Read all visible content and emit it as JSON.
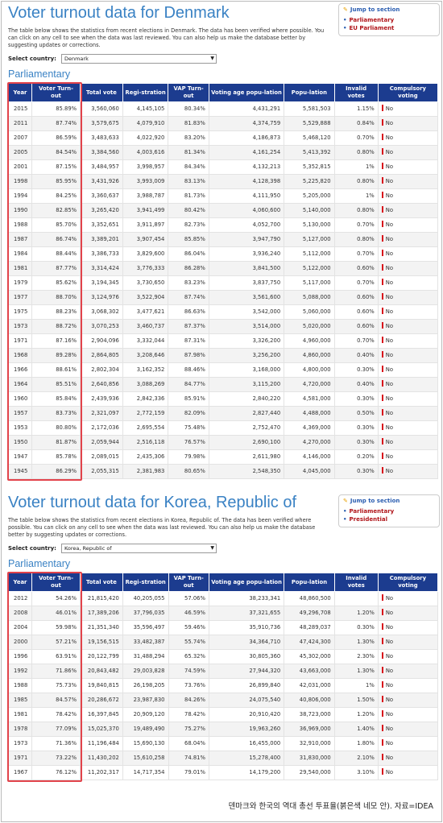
{
  "denmark": {
    "title": "Voter turnout data for Denmark",
    "description": "The table below shows the statistics from recent elections in Denmark. The data has been verified where possible. You can click on any cell to see when the data was last reviewed. You can also help us make the database better by suggesting updates or corrections.",
    "select_label": "Select country:",
    "select_value": "Denmark",
    "subheading": "Parliamentary",
    "jump": {
      "title": "Jump to section",
      "links": [
        "Parliamentary",
        "EU Parliament"
      ]
    },
    "columns": [
      "Year",
      "Voter Turn-out",
      "Total vote",
      "Regi-stration",
      "VAP Turn-out",
      "Voting age popu-lation",
      "Popu-lation",
      "Invalid votes",
      "Compulsory voting"
    ],
    "rows": [
      [
        "2015",
        "85.89%",
        "3,560,060",
        "4,145,105",
        "80.34%",
        "4,431,291",
        "5,581,503",
        "1.15%",
        "No"
      ],
      [
        "2011",
        "87.74%",
        "3,579,675",
        "4,079,910",
        "81.83%",
        "4,374,759",
        "5,529,888",
        "0.84%",
        "No"
      ],
      [
        "2007",
        "86.59%",
        "3,483,633",
        "4,022,920",
        "83.20%",
        "4,186,873",
        "5,468,120",
        "0.70%",
        "No"
      ],
      [
        "2005",
        "84.54%",
        "3,384,560",
        "4,003,616",
        "81.34%",
        "4,161,254",
        "5,413,392",
        "0.80%",
        "No"
      ],
      [
        "2001",
        "87.15%",
        "3,484,957",
        "3,998,957",
        "84.34%",
        "4,132,213",
        "5,352,815",
        "1%",
        "No"
      ],
      [
        "1998",
        "85.95%",
        "3,431,926",
        "3,993,009",
        "83.13%",
        "4,128,398",
        "5,225,820",
        "0.80%",
        "No"
      ],
      [
        "1994",
        "84.25%",
        "3,360,637",
        "3,988,787",
        "81.73%",
        "4,111,950",
        "5,205,000",
        "1%",
        "No"
      ],
      [
        "1990",
        "82.85%",
        "3,265,420",
        "3,941,499",
        "80.42%",
        "4,060,600",
        "5,140,000",
        "0.80%",
        "No"
      ],
      [
        "1988",
        "85.70%",
        "3,352,651",
        "3,911,897",
        "82.73%",
        "4,052,700",
        "5,130,000",
        "0.70%",
        "No"
      ],
      [
        "1987",
        "86.74%",
        "3,389,201",
        "3,907,454",
        "85.85%",
        "3,947,790",
        "5,127,000",
        "0.80%",
        "No"
      ],
      [
        "1984",
        "88.44%",
        "3,386,733",
        "3,829,600",
        "86.04%",
        "3,936,240",
        "5,112,000",
        "0.70%",
        "No"
      ],
      [
        "1981",
        "87.77%",
        "3,314,424",
        "3,776,333",
        "86.28%",
        "3,841,500",
        "5,122,000",
        "0.60%",
        "No"
      ],
      [
        "1979",
        "85.62%",
        "3,194,345",
        "3,730,650",
        "83.23%",
        "3,837,750",
        "5,117,000",
        "0.70%",
        "No"
      ],
      [
        "1977",
        "88.70%",
        "3,124,976",
        "3,522,904",
        "87.74%",
        "3,561,600",
        "5,088,000",
        "0.60%",
        "No"
      ],
      [
        "1975",
        "88.23%",
        "3,068,302",
        "3,477,621",
        "86.63%",
        "3,542,000",
        "5,060,000",
        "0.60%",
        "No"
      ],
      [
        "1973",
        "88.72%",
        "3,070,253",
        "3,460,737",
        "87.37%",
        "3,514,000",
        "5,020,000",
        "0.60%",
        "No"
      ],
      [
        "1971",
        "87.16%",
        "2,904,096",
        "3,332,044",
        "87.31%",
        "3,326,200",
        "4,960,000",
        "0.70%",
        "No"
      ],
      [
        "1968",
        "89.28%",
        "2,864,805",
        "3,208,646",
        "87.98%",
        "3,256,200",
        "4,860,000",
        "0.40%",
        "No"
      ],
      [
        "1966",
        "88.61%",
        "2,802,304",
        "3,162,352",
        "88.46%",
        "3,168,000",
        "4,800,000",
        "0.30%",
        "No"
      ],
      [
        "1964",
        "85.51%",
        "2,640,856",
        "3,088,269",
        "84.77%",
        "3,115,200",
        "4,720,000",
        "0.40%",
        "No"
      ],
      [
        "1960",
        "85.84%",
        "2,439,936",
        "2,842,336",
        "85.91%",
        "2,840,220",
        "4,581,000",
        "0.30%",
        "No"
      ],
      [
        "1957",
        "83.73%",
        "2,321,097",
        "2,772,159",
        "82.09%",
        "2,827,440",
        "4,488,000",
        "0.50%",
        "No"
      ],
      [
        "1953",
        "80.80%",
        "2,172,036",
        "2,695,554",
        "75.48%",
        "2,752,470",
        "4,369,000",
        "0.30%",
        "No"
      ],
      [
        "1950",
        "81.87%",
        "2,059,944",
        "2,516,118",
        "76.57%",
        "2,690,100",
        "4,270,000",
        "0.30%",
        "No"
      ],
      [
        "1947",
        "85.78%",
        "2,089,015",
        "2,435,306",
        "79.98%",
        "2,611,980",
        "4,146,000",
        "0.20%",
        "No"
      ],
      [
        "1945",
        "86.29%",
        "2,055,315",
        "2,381,983",
        "80.65%",
        "2,548,350",
        "4,045,000",
        "0.30%",
        "No"
      ]
    ]
  },
  "korea": {
    "title": "Voter turnout data for Korea, Republic of",
    "description": "The table below shows the statistics from recent elections in Korea, Republic of. The data has been verified where possible. You can click on any cell to see when the data was last reviewed. You can also help us make the database better by suggesting updates or corrections.",
    "select_label": "Select country:",
    "select_value": "Korea, Republic of",
    "subheading": "Parliamentary",
    "jump": {
      "title": "Jump to section",
      "links": [
        "Parliamentary",
        "Presidential"
      ]
    },
    "columns": [
      "Year",
      "Voter Turn-out",
      "Total vote",
      "Regi-stration",
      "VAP Turn-out",
      "Voting age popu-lation",
      "Popu-lation",
      "Invalid votes",
      "Compulsory voting"
    ],
    "rows": [
      [
        "2012",
        "54.26%",
        "21,815,420",
        "40,205,055",
        "57.06%",
        "38,233,341",
        "48,860,500",
        "",
        "No"
      ],
      [
        "2008",
        "46.01%",
        "17,389,206",
        "37,796,035",
        "46.59%",
        "37,321,655",
        "49,296,708",
        "1.20%",
        "No"
      ],
      [
        "2004",
        "59.98%",
        "21,351,340",
        "35,596,497",
        "59.46%",
        "35,910,736",
        "48,289,037",
        "0.30%",
        "No"
      ],
      [
        "2000",
        "57.21%",
        "19,156,515",
        "33,482,387",
        "55.74%",
        "34,364,710",
        "47,424,300",
        "1.30%",
        "No"
      ],
      [
        "1996",
        "63.91%",
        "20,122,799",
        "31,488,294",
        "65.32%",
        "30,805,360",
        "45,302,000",
        "2.30%",
        "No"
      ],
      [
        "1992",
        "71.86%",
        "20,843,482",
        "29,003,828",
        "74.59%",
        "27,944,320",
        "43,663,000",
        "1.30%",
        "No"
      ],
      [
        "1988",
        "75.73%",
        "19,840,815",
        "26,198,205",
        "73.76%",
        "26,899,840",
        "42,031,000",
        "1%",
        "No"
      ],
      [
        "1985",
        "84.57%",
        "20,286,672",
        "23,987,830",
        "84.26%",
        "24,075,540",
        "40,806,000",
        "1.50%",
        "No"
      ],
      [
        "1981",
        "78.42%",
        "16,397,845",
        "20,909,120",
        "78.42%",
        "20,910,420",
        "38,723,000",
        "1.20%",
        "No"
      ],
      [
        "1978",
        "77.09%",
        "15,025,370",
        "19,489,490",
        "75.27%",
        "19,963,260",
        "36,969,000",
        "1.40%",
        "No"
      ],
      [
        "1973",
        "71.36%",
        "11,196,484",
        "15,690,130",
        "68.04%",
        "16,455,000",
        "32,910,000",
        "1.80%",
        "No"
      ],
      [
        "1971",
        "73.22%",
        "11,430,202",
        "15,610,258",
        "74.81%",
        "15,278,400",
        "31,830,000",
        "2.10%",
        "No"
      ],
      [
        "1967",
        "76.12%",
        "11,202,317",
        "14,717,354",
        "79.01%",
        "14,179,200",
        "29,540,000",
        "3.10%",
        "No"
      ]
    ]
  },
  "caption": "덴마크와 한국의 역대 총선 투표율(붉은색 네모 안). 자료=IDEA",
  "colors": {
    "title": "#3a82c4",
    "header_bg": "#1c3c8f",
    "highlight": "#e2434b",
    "link": "#b0151a",
    "compulsory_marker": "#d8121b"
  }
}
